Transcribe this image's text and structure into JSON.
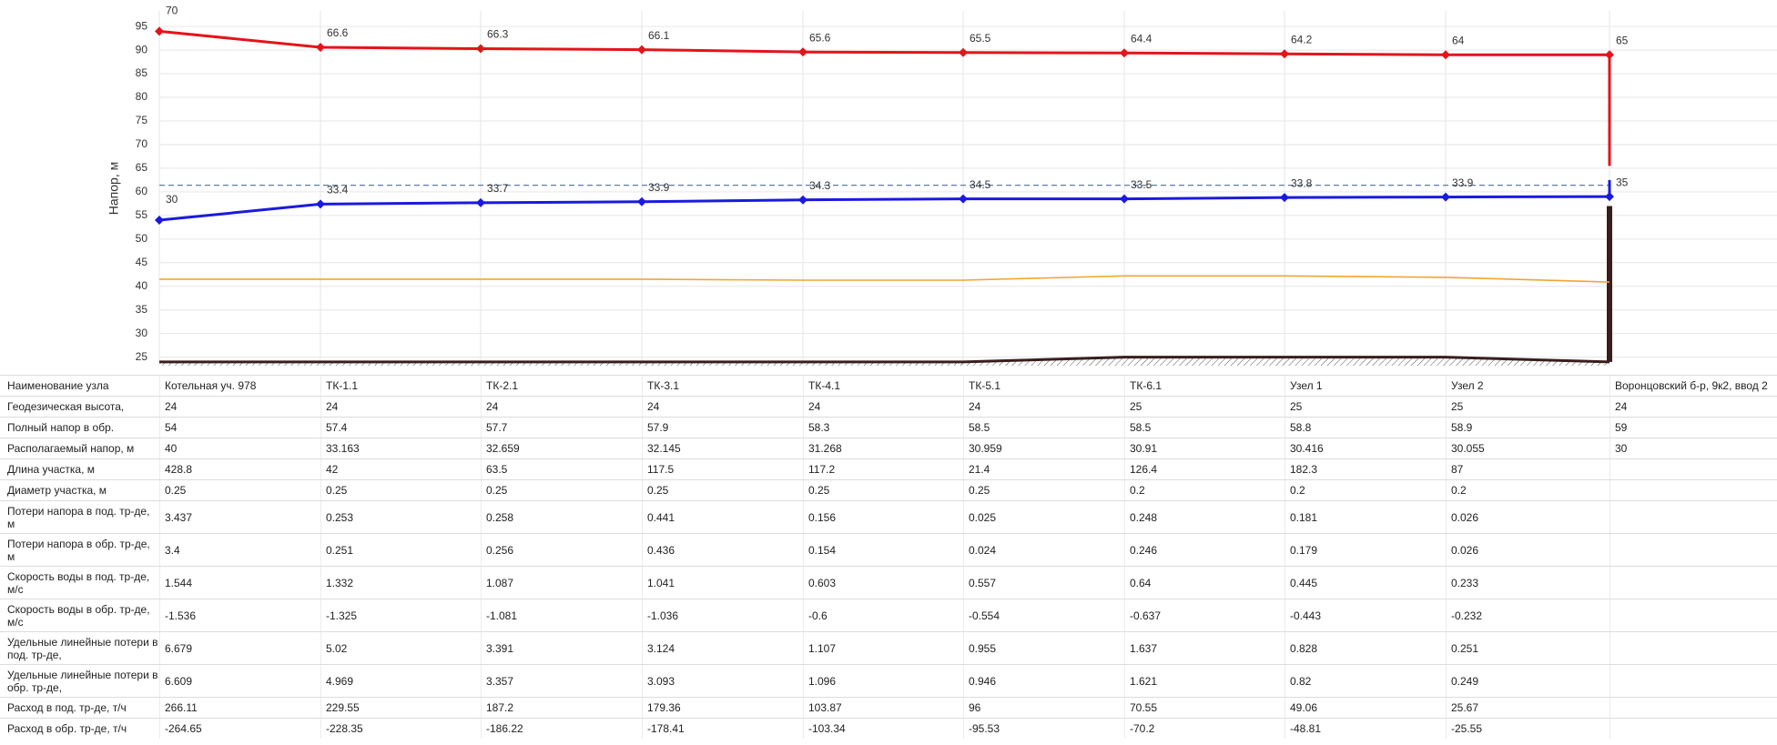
{
  "chart_data": {
    "type": "line",
    "ylabel": "Напор, м",
    "ylim": [
      23.2,
      98.3
    ],
    "yticks": [
      25,
      30,
      35,
      40,
      45,
      50,
      55,
      60,
      65,
      70,
      75,
      80,
      85,
      90,
      95
    ],
    "grid": true,
    "series": [
      {
        "color": "#e3141b",
        "values": [
          94,
          90.6,
          90.3,
          90.1,
          89.6,
          89.5,
          89.4,
          89.2,
          89,
          89
        ],
        "pressure_labels": [
          70,
          66.6,
          66.3,
          66.1,
          65.6,
          65.5,
          64.4,
          64.2,
          64,
          65
        ],
        "end_value": 65.5
      },
      {
        "color": "#1a1adf",
        "values": [
          54,
          57.4,
          57.7,
          57.9,
          58.3,
          58.5,
          58.5,
          58.8,
          58.9,
          59
        ],
        "pressure_labels": [
          30,
          33.4,
          33.7,
          33.9,
          34.3,
          34.5,
          33.5,
          33.8,
          33.9,
          35
        ],
        "end_value": 62.5
      },
      {
        "color": "#f2a531",
        "values": [
          41.5,
          41.5,
          41.5,
          41.5,
          41.3,
          41.3,
          42.2,
          42.2,
          41.9,
          40.9
        ]
      }
    ],
    "static_head": {
      "value": 61.4,
      "color": "#5b7fa6"
    },
    "ground": {
      "color": "#3a1e1e",
      "values": [
        24,
        24,
        24,
        24,
        24,
        24,
        25,
        25,
        25,
        24
      ]
    },
    "building": {
      "value": 57,
      "color": "#3a1e1e"
    }
  },
  "table": {
    "rows": [
      {
        "label": "Наименование узла",
        "cells": [
          "Котельная уч. 978",
          "ТК-1.1",
          "ТК-2.1",
          "ТК-3.1",
          "ТК-4.1",
          "ТК-5.1",
          "ТК-6.1",
          "Узел 1",
          "Узел 2",
          "Воронцовский б-р, 9к2, ввод 2"
        ]
      },
      {
        "label": "Геодезическая высота,",
        "cells": [
          24,
          24,
          24,
          24,
          24,
          24,
          25,
          25,
          25,
          24
        ]
      },
      {
        "label": "Полный напор в обр.",
        "cells": [
          54,
          57.4,
          57.7,
          57.9,
          58.3,
          58.5,
          58.5,
          58.8,
          58.9,
          59
        ]
      },
      {
        "label": "Располагаемый напор, м",
        "cells": [
          40,
          33.163,
          32.659,
          32.145,
          31.268,
          30.959,
          30.91,
          30.416,
          30.055,
          30
        ]
      },
      {
        "label": "Длина участка, м",
        "cells": [
          428.8,
          42,
          63.5,
          117.5,
          117.2,
          21.4,
          126.4,
          182.3,
          87,
          null
        ]
      },
      {
        "label": "Диаметр участка, м",
        "cells": [
          0.25,
          0.25,
          0.25,
          0.25,
          0.25,
          0.25,
          0.2,
          0.2,
          0.2,
          null
        ]
      },
      {
        "label": "Потери напора в под. тр-де, м",
        "cells": [
          3.437,
          0.253,
          0.258,
          0.441,
          0.156,
          0.025,
          0.248,
          0.181,
          0.026,
          null
        ]
      },
      {
        "label": "Потери напора в обр. тр-де, м",
        "cells": [
          3.4,
          0.251,
          0.256,
          0.436,
          0.154,
          0.024,
          0.246,
          0.179,
          0.026,
          null
        ]
      },
      {
        "label": "Скорость воды в под. тр-де, м/с",
        "cells": [
          1.544,
          1.332,
          1.087,
          1.041,
          0.603,
          0.557,
          0.64,
          0.445,
          0.233,
          null
        ]
      },
      {
        "label": "Скорость воды в обр. тр-де, м/с",
        "cells": [
          -1.536,
          -1.325,
          -1.081,
          -1.036,
          -0.6,
          -0.554,
          -0.637,
          -0.443,
          -0.232,
          null
        ]
      },
      {
        "label": "Удельные линейные потери в под. тр-де,",
        "cells": [
          6.679,
          5.02,
          3.391,
          3.124,
          1.107,
          0.955,
          1.637,
          0.828,
          0.251,
          null
        ]
      },
      {
        "label": "Удельные линейные потери в обр. тр-де,",
        "cells": [
          6.609,
          4.969,
          3.357,
          3.093,
          1.096,
          0.946,
          1.621,
          0.82,
          0.249,
          null
        ]
      },
      {
        "label": "Расход в под. тр-де, т/ч",
        "cells": [
          266.11,
          229.55,
          187.2,
          179.36,
          103.87,
          96,
          70.55,
          49.06,
          25.67,
          null
        ]
      },
      {
        "label": "Расход в обр. тр-де, т/ч",
        "cells": [
          -264.65,
          -228.35,
          -186.22,
          -178.41,
          -103.34,
          -95.53,
          -70.2,
          -48.81,
          -25.55,
          null
        ]
      }
    ]
  }
}
